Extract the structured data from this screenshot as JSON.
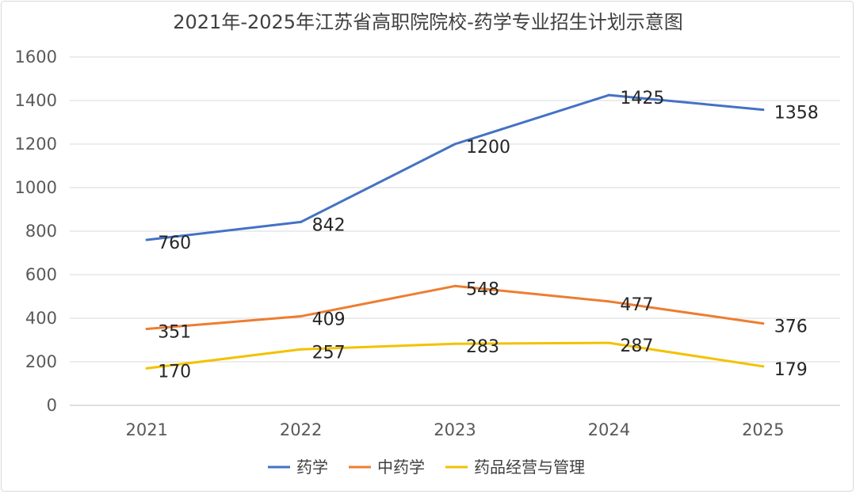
{
  "chart_data": {
    "type": "line",
    "title": "2021年-2025年江苏省高职院院校-药学专业招生计划示意图",
    "categories": [
      "2021",
      "2022",
      "2023",
      "2024",
      "2025"
    ],
    "ylim": [
      0,
      1600
    ],
    "yticks": [
      0,
      200,
      400,
      600,
      800,
      1000,
      1200,
      1400,
      1600
    ],
    "grid": true,
    "legend_position": "bottom",
    "series": [
      {
        "name": "药学",
        "color": "#4472C4",
        "values": [
          760,
          842,
          1200,
          1425,
          1358
        ]
      },
      {
        "name": "中药学",
        "color": "#ED7D31",
        "values": [
          351,
          409,
          548,
          477,
          376
        ]
      },
      {
        "name": "药品经营与管理",
        "color": "#F2C200",
        "values": [
          170,
          257,
          283,
          287,
          179
        ]
      }
    ]
  }
}
